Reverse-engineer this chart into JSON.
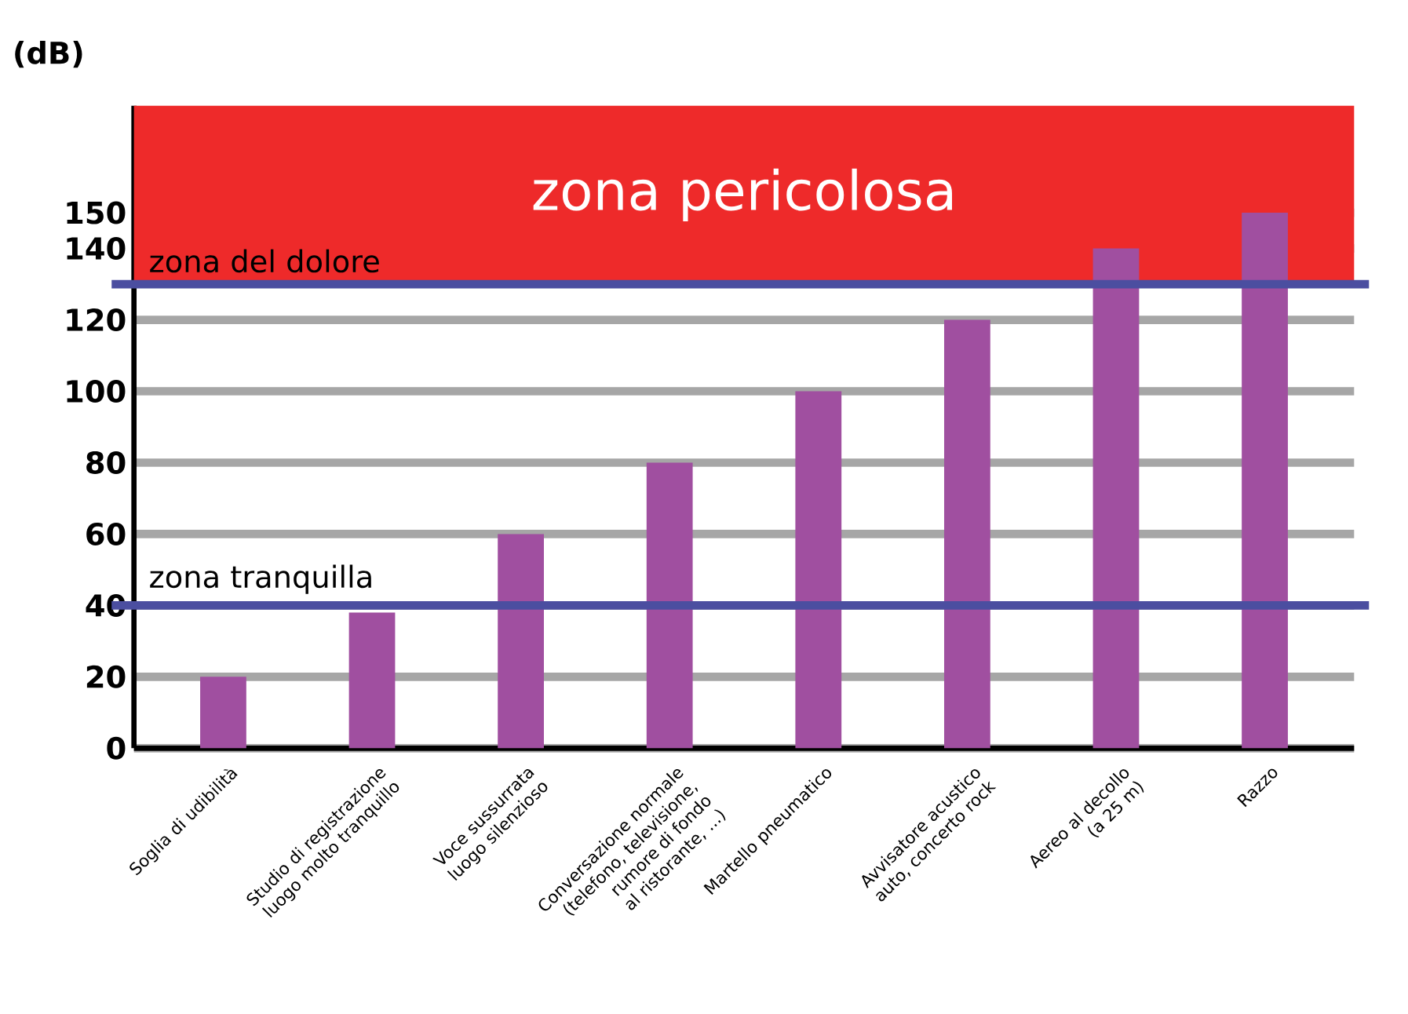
{
  "chart_data": {
    "type": "bar",
    "ylabel": "(dB)",
    "categories": [
      "Soglia di udibilità",
      "Studio di registrazione luogo molto tranquillo",
      "Voce sussurrata luogo silenzioso",
      "Conversazione normale (telefono, televisione, rumore di fondo al ristorante, ...)",
      "Martello pneumatico",
      "Avvisatore acustico auto, concerto rock",
      "Aereo al decollo (a 25 m)",
      "Razzo"
    ],
    "values": [
      20,
      38,
      60,
      80,
      100,
      120,
      140,
      150
    ],
    "color": "#a04fa0",
    "ylim": [
      0,
      180
    ],
    "yticks": [
      0,
      20,
      40,
      60,
      80,
      100,
      120,
      140,
      150
    ],
    "grid": "y",
    "ref_lines": [
      {
        "axis": "y",
        "value": 130,
        "label": "zona del dolore",
        "color": "#4b4ea0"
      },
      {
        "axis": "y",
        "value": 40,
        "label": "zona tranquilla",
        "color": "#4b4ea0"
      }
    ],
    "bands": [
      {
        "axis": "y",
        "from": 130,
        "to": 180,
        "label": "zona pericolosa",
        "color": "#ee2a2a"
      }
    ]
  }
}
